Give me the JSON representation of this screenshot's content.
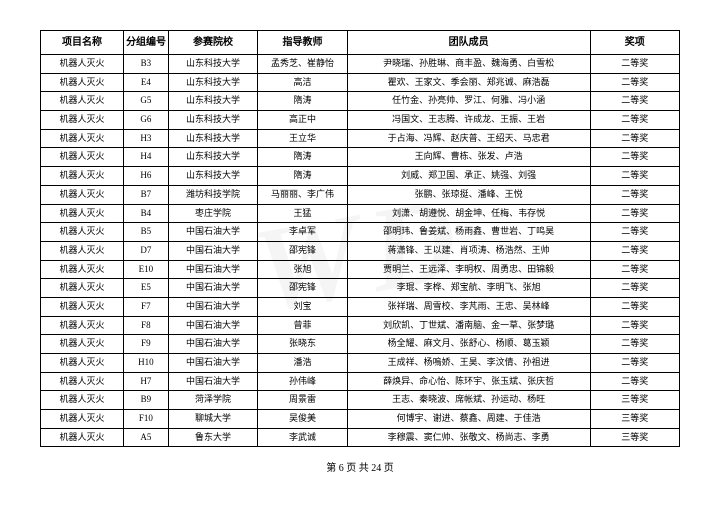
{
  "columns": [
    "项目名称",
    "分组编号",
    "参赛院校",
    "指导教师",
    "团队成员",
    "奖项"
  ],
  "rows": [
    [
      "机器人灭火",
      "B3",
      "山东科技大学",
      "孟秀芝、崔静怡",
      "尹晓瑞、孙胜琳、商丰盈、魏海勇、白雪松",
      "二等奖"
    ],
    [
      "机器人灭火",
      "E4",
      "山东科技大学",
      "高洁",
      "瞿欢、王家文、季会丽、郑兆诚、麻浩磊",
      "二等奖"
    ],
    [
      "机器人灭火",
      "G5",
      "山东科技大学",
      "隋涛",
      "任竹金、孙亮帅、罗江、何雅、冯小涵",
      "二等奖"
    ],
    [
      "机器人灭火",
      "G6",
      "山东科技大学",
      "高正中",
      "冯国文、王志腾、许成龙、王振、王岩",
      "二等奖"
    ],
    [
      "机器人灭火",
      "H3",
      "山东科技大学",
      "王立华",
      "于占海、冯辉、赵庆普、王绍天、马忠君",
      "二等奖"
    ],
    [
      "机器人灭火",
      "H4",
      "山东科技大学",
      "隋涛",
      "王向辉、曹栋、张发、卢浩",
      "二等奖"
    ],
    [
      "机器人灭火",
      "H6",
      "山东科技大学",
      "隋涛",
      "刘威、郑卫国、承正、姚强、刘强",
      "二等奖"
    ],
    [
      "机器人灭火",
      "B7",
      "潍坊科技学院",
      "马丽丽、李广伟",
      "张鹏、张琼挺、潘峰、王悦",
      "二等奖"
    ],
    [
      "机器人灭火",
      "B4",
      "枣庄学院",
      "王猛",
      "刘潇、胡遵悦、胡金坤、任梅、韦存悦",
      "二等奖"
    ],
    [
      "机器人灭火",
      "B5",
      "中国石油大学",
      "李卓军",
      "邵明玮、鲁姜斌、杨雨鑫、曹世岩、丁鸣昊",
      "二等奖"
    ],
    [
      "机器人灭火",
      "D7",
      "中国石油大学",
      "邵宪锋",
      "蒋潇锋、王以建、肖项涛、杨浩然、王帅",
      "二等奖"
    ],
    [
      "机器人灭火",
      "E10",
      "中国石油大学",
      "张旭",
      "贾明兰、王远泽、李明权、周勇忠、田锦毅",
      "二等奖"
    ],
    [
      "机器人灭火",
      "E5",
      "中国石油大学",
      "邵宪锋",
      "李琨、李桦、郑宝航、李明飞、张旭",
      "二等奖"
    ],
    [
      "机器人灭火",
      "F7",
      "中国石油大学",
      "刘宝",
      "张祥瑞、周雪校、李芃雨、王忠、吴林峰",
      "二等奖"
    ],
    [
      "机器人灭火",
      "F8",
      "中国石油大学",
      "曾菲",
      "刘欣凯、丁世斌、潘南脑、金一草、张梦璐",
      "二等奖"
    ],
    [
      "机器人灭火",
      "F9",
      "中国石油大学",
      "张晓东",
      "杨全耀、麻文月、张舒心、杨顺、葛玉颖",
      "二等奖"
    ],
    [
      "机器人灭火",
      "H10",
      "中国石油大学",
      "潘浩",
      "王成祥、杨嗚娇、王昊、李汶倩、孙祖进",
      "二等奖"
    ],
    [
      "机器人灭火",
      "H7",
      "中国石油大学",
      "孙伟峰",
      "薛焕异、命心怡、陈环宇、张玉斌、张庆哲",
      "二等奖"
    ],
    [
      "机器人灭火",
      "B9",
      "菏泽学院",
      "周景雷",
      "王志、秦晓波、席帐斌、孙运动、杨旺",
      "三等奖"
    ],
    [
      "机器人灭火",
      "F10",
      "聊城大学",
      "吴俊美",
      "何博宇、谢进、蔡鑫、周建、于佳浩",
      "三等奖"
    ],
    [
      "机器人灭火",
      "A5",
      "鲁东大学",
      "李武诚",
      "李穆震、窦仁帅、张敬文、杨尚志、李勇",
      "三等奖"
    ]
  ],
  "footer": "第 6 页 共 24 页"
}
